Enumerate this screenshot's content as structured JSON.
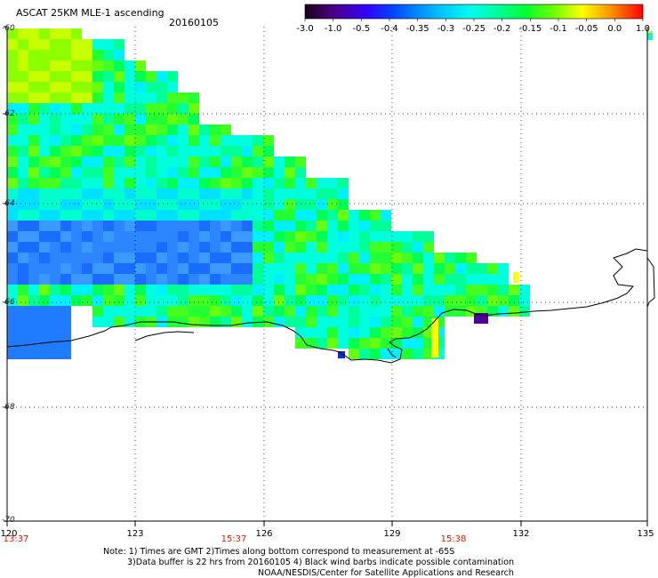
{
  "header": {
    "title": "ASCAT 25KM MLE-1 ascending",
    "date": "20160105"
  },
  "colorbar": {
    "labels": [
      "-3.0",
      "-1.0",
      "-0.5",
      "-0.4",
      "-0.35",
      "-0.3",
      "-0.25",
      "-0.2",
      "-0.15",
      "-0.1",
      "-0.05",
      "0.0",
      "1.0"
    ],
    "colors": [
      "#2a0033",
      "#4a0066",
      "#4400cc",
      "#0022ff",
      "#0077ff",
      "#00b4ff",
      "#00ffff",
      "#00ff88",
      "#00ff00",
      "#88ff00",
      "#ffff00",
      "#ff8800",
      "#ff0000"
    ]
  },
  "axes": {
    "lat_labels": [
      "-60",
      "-62",
      "-64",
      "-66",
      "-68",
      "-70"
    ],
    "lon_labels": [
      "120",
      "123",
      "126",
      "129",
      "132",
      "135"
    ],
    "time_labels": [
      "13:37",
      "15:37",
      "15:38"
    ]
  },
  "notes": {
    "line1": "Note: 1) Times are GMT 2)Times along bottom correspond to measurement at -65S",
    "line2": "3)Data buffer is 22 hrs from 20160105 4) Black wind barbs indicate possible contamination",
    "line3": "NOAA/NESDIS/Center for Satellite Applications and Research"
  }
}
